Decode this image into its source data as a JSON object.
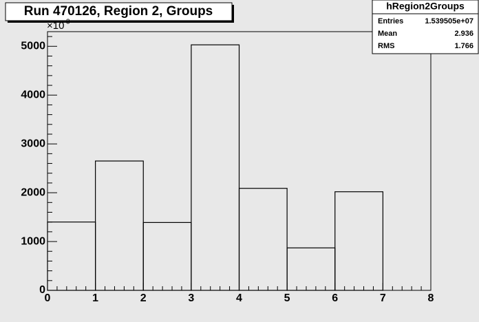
{
  "chart_data": {
    "type": "histogram",
    "title": "Run 470126, Region 2, Groups",
    "y_multiplier": "×10",
    "y_multiplier_exponent": "3",
    "bins": [
      0,
      1,
      2,
      3,
      4,
      5,
      6,
      7,
      8
    ],
    "values": [
      1400,
      2650,
      1390,
      5030,
      2090,
      870,
      2020,
      0
    ],
    "color": "#000000",
    "xlim": [
      0,
      8
    ],
    "xticks": [
      0,
      1,
      2,
      3,
      4,
      5,
      6,
      7,
      8
    ],
    "ylim": [
      0,
      5300
    ],
    "yticks": [
      0,
      1000,
      2000,
      3000,
      4000,
      5000
    ],
    "stats": {
      "name": "hRegion2Groups",
      "rows": [
        [
          "Entries",
          "1.539505e+07"
        ],
        [
          "Mean",
          "2.936"
        ],
        [
          "RMS",
          "1.766"
        ]
      ]
    }
  }
}
